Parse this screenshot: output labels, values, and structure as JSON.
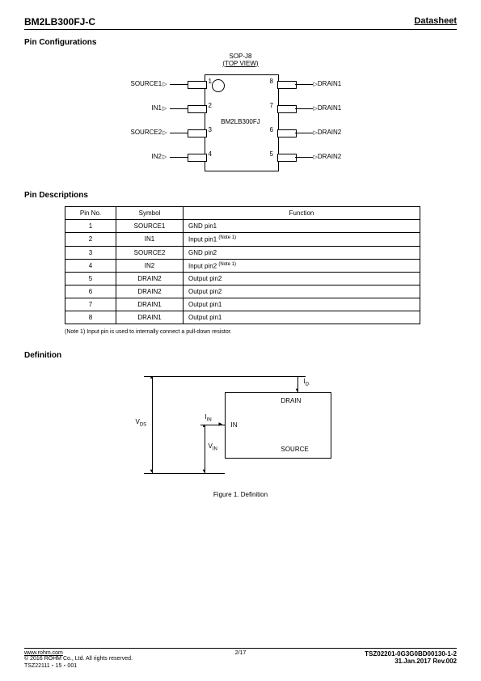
{
  "header": {
    "part": "BM2LB300FJ-C",
    "doc": "Datasheet"
  },
  "sections": {
    "pinconfig": "Pin Configurations",
    "pindesc": "Pin Descriptions",
    "definition": "Definition"
  },
  "package": {
    "name": "SOP-J8",
    "view": "(TOP VIEW)",
    "chip": "BM2LB300FJ"
  },
  "pins": {
    "left": [
      {
        "num": "1",
        "label": "SOURCE1",
        "dir": "in"
      },
      {
        "num": "2",
        "label": "IN1",
        "dir": "in"
      },
      {
        "num": "3",
        "label": "SOURCE2",
        "dir": "in"
      },
      {
        "num": "4",
        "label": "IN2",
        "dir": "in"
      }
    ],
    "right": [
      {
        "num": "8",
        "label": "DRAIN1",
        "dir": "out"
      },
      {
        "num": "7",
        "label": "DRAIN1",
        "dir": "out"
      },
      {
        "num": "6",
        "label": "DRAIN2",
        "dir": "out"
      },
      {
        "num": "5",
        "label": "DRAIN2",
        "dir": "out"
      }
    ]
  },
  "pintable": {
    "headers": [
      "Pin No.",
      "Symbol",
      "Function"
    ],
    "rows": [
      [
        "1",
        "SOURCE1",
        "GND pin1",
        ""
      ],
      [
        "2",
        "IN1",
        "Input pin1 ",
        "(Note 1)"
      ],
      [
        "3",
        "SOURCE2",
        "GND pin2",
        ""
      ],
      [
        "4",
        "IN2",
        "Input pin2 ",
        "(Note 1)"
      ],
      [
        "5",
        "DRAIN2",
        "Output pin2",
        ""
      ],
      [
        "6",
        "DRAIN2",
        "Output pin2",
        ""
      ],
      [
        "7",
        "DRAIN1",
        "Output pin1",
        ""
      ],
      [
        "8",
        "DRAIN1",
        "Output pin1",
        ""
      ]
    ]
  },
  "note1": "(Note 1) Input pin is used to internally connect a pull-down resistor.",
  "definition_diagram": {
    "labels": {
      "id": "I",
      "idsub": "D",
      "drain": "DRAIN",
      "in": "IN",
      "source": "SOURCE",
      "vds": "V",
      "vdssub": "DS",
      "vin": "V",
      "vinsub": "IN",
      "iin": "I",
      "iinsub": "IN"
    },
    "caption": "Figure 1. Definition"
  },
  "footer": {
    "url": "www.rohm.com",
    "copyright": "© 2016 ROHM Co., Ltd. All rights reserved.",
    "code": "TSZ22111・15・001",
    "page": "2/17",
    "docnum": "TSZ02201-0G3G0BD00130-1-2",
    "date": "31.Jan.2017 Rev.002"
  },
  "styling": {
    "colors": {
      "text": "#000000",
      "background": "#ffffff",
      "border": "#000000"
    },
    "fonts": {
      "body": 9,
      "header": 12,
      "section": 10,
      "table": 8,
      "diagram": 8,
      "footer": 7
    }
  }
}
